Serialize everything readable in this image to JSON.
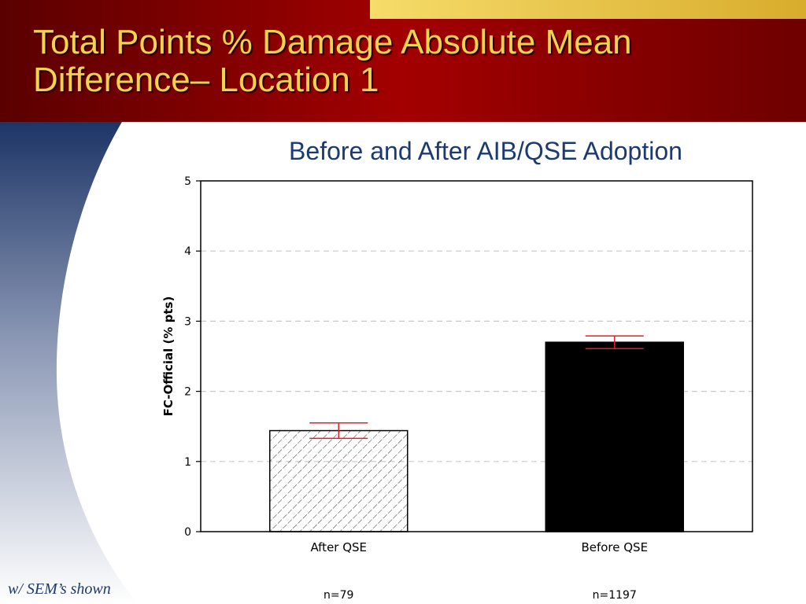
{
  "slide": {
    "title_line1": "Total Points % Damage Absolute Mean",
    "title_line2": "Difference– Location 1",
    "footnote": "w/ SEM’s shown",
    "colors": {
      "header_dark": "#5a0000",
      "header_red": "#a30000",
      "title_text": "#f2d34f",
      "accent_gold": "#f1cc4a",
      "side_navy": "#1d3566",
      "chart_title": "#1c3a6e",
      "error_bar": "#e02020"
    }
  },
  "chart_data": {
    "type": "bar",
    "title": "Before and After AIB/QSE Adoption",
    "xlabel": "",
    "ylabel": "FC-Official (% pts)",
    "ylim": [
      0,
      5
    ],
    "yticks": [
      0,
      1,
      2,
      3,
      4,
      5
    ],
    "grid": "horizontal dashed",
    "categories": [
      "After QSE",
      "Before QSE"
    ],
    "values": [
      1.44,
      2.7
    ],
    "sem": [
      0.11,
      0.09
    ],
    "counts": [
      "n=79",
      "n=1197"
    ],
    "fills": [
      "hatched",
      "#000000"
    ]
  }
}
